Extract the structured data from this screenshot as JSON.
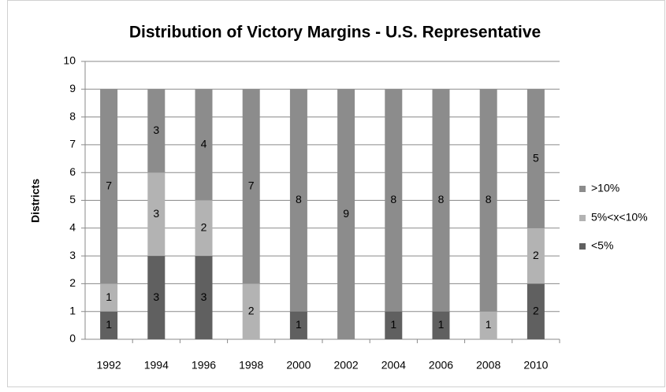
{
  "chart_data": {
    "type": "stacked_bar",
    "title": "Distribution of Victory Margins - U.S. Representative",
    "y_label": "Districts",
    "categories": [
      "1992",
      "1994",
      "1996",
      "1998",
      "2000",
      "2002",
      "2004",
      "2006",
      "2008",
      "2010"
    ],
    "series": [
      {
        "name": "<5%",
        "color": "#606060",
        "values": [
          1,
          3,
          3,
          0,
          1,
          0,
          1,
          1,
          0,
          2
        ]
      },
      {
        "name": "5%<x<10%",
        "color": "#b3b3b3",
        "values": [
          1,
          3,
          2,
          2,
          0,
          0,
          0,
          0,
          1,
          2
        ]
      },
      {
        "name": ">10%",
        "color": "#8c8c8c",
        "values": [
          7,
          3,
          4,
          7,
          8,
          9,
          8,
          8,
          8,
          5
        ]
      }
    ],
    "ylim": [
      0,
      10
    ],
    "yticks": [
      0,
      1,
      2,
      3,
      4,
      5,
      6,
      7,
      8,
      9,
      10
    ],
    "grid": true,
    "legend": "right"
  }
}
